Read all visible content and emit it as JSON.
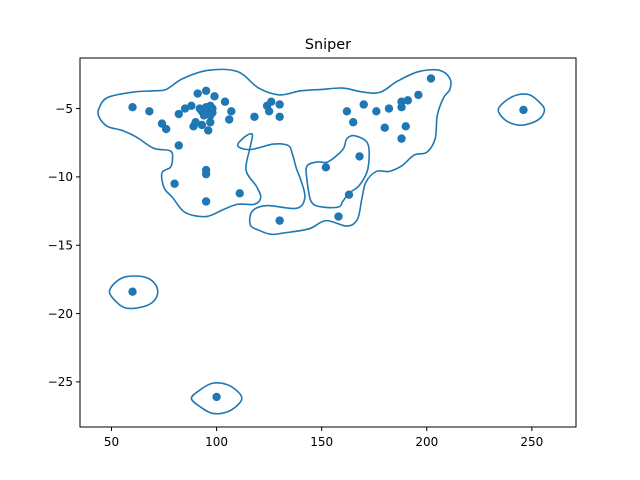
{
  "chart_data": {
    "type": "scatter",
    "title": "Sniper",
    "xlabel": "",
    "ylabel": "",
    "xlim": [
      35,
      271
    ],
    "ylim": [
      -28.3,
      -1.3
    ],
    "x_ticks": [
      50,
      100,
      150,
      200,
      250
    ],
    "x_tick_labels": [
      "50",
      "100",
      "150",
      "200",
      "250"
    ],
    "y_ticks": [
      -5,
      -10,
      -15,
      -20,
      -25
    ],
    "y_tick_labels": [
      "−5",
      "−10",
      "−15",
      "−20",
      "−25"
    ],
    "grid": false,
    "legend": "none",
    "colors": {
      "series": "#1f77b4",
      "axes": "#000000",
      "background": "#ffffff"
    },
    "points": [
      [
        60,
        -4.9
      ],
      [
        68,
        -5.2
      ],
      [
        74,
        -6.1
      ],
      [
        76,
        -6.5
      ],
      [
        80,
        -10.5
      ],
      [
        82,
        -7.7
      ],
      [
        82,
        -5.4
      ],
      [
        85,
        -5.0
      ],
      [
        88,
        -4.8
      ],
      [
        89,
        -6.3
      ],
      [
        90,
        -6.0
      ],
      [
        91,
        -3.9
      ],
      [
        92,
        -5.0
      ],
      [
        93,
        -5.2
      ],
      [
        93,
        -6.2
      ],
      [
        94,
        -5.5
      ],
      [
        95,
        -4.9
      ],
      [
        95,
        -3.7
      ],
      [
        95,
        -9.5
      ],
      [
        95,
        -9.8
      ],
      [
        95,
        -11.8
      ],
      [
        96,
        -6.6
      ],
      [
        96,
        -5.1
      ],
      [
        97,
        -4.8
      ],
      [
        97,
        -5.5
      ],
      [
        97,
        -6.0
      ],
      [
        98,
        -5.0
      ],
      [
        98,
        -5.3
      ],
      [
        99,
        -4.1
      ],
      [
        104,
        -4.5
      ],
      [
        106,
        -5.8
      ],
      [
        107,
        -5.2
      ],
      [
        111,
        -11.2
      ],
      [
        118,
        -5.6
      ],
      [
        124,
        -4.8
      ],
      [
        125,
        -5.2
      ],
      [
        126,
        -4.5
      ],
      [
        130,
        -5.6
      ],
      [
        130,
        -4.7
      ],
      [
        130,
        -13.2
      ],
      [
        152,
        -9.3
      ],
      [
        158,
        -12.9
      ],
      [
        162,
        -5.2
      ],
      [
        163,
        -11.3
      ],
      [
        165,
        -6.0
      ],
      [
        168,
        -8.5
      ],
      [
        170,
        -4.7
      ],
      [
        176,
        -5.2
      ],
      [
        180,
        -6.4
      ],
      [
        182,
        -5.0
      ],
      [
        188,
        -4.5
      ],
      [
        188,
        -4.9
      ],
      [
        188,
        -7.2
      ],
      [
        190,
        -6.3
      ],
      [
        191,
        -4.4
      ],
      [
        196,
        -4.0
      ],
      [
        202,
        -2.8
      ],
      [
        246,
        -5.1
      ],
      [
        60,
        -18.4
      ],
      [
        100,
        -26.1
      ]
    ],
    "kde_contours": [
      [
        [
          44,
          -5.0
        ],
        [
          48,
          -4.2
        ],
        [
          60,
          -3.8
        ],
        [
          70,
          -3.7
        ],
        [
          76,
          -3.6
        ],
        [
          84,
          -2.8
        ],
        [
          96,
          -2.2
        ],
        [
          110,
          -2.3
        ],
        [
          120,
          -3.5
        ],
        [
          130,
          -4.0
        ],
        [
          140,
          -3.7
        ],
        [
          150,
          -3.6
        ],
        [
          160,
          -3.5
        ],
        [
          170,
          -3.8
        ],
        [
          178,
          -3.8
        ],
        [
          186,
          -3.0
        ],
        [
          196,
          -2.3
        ],
        [
          206,
          -2.2
        ],
        [
          211,
          -2.8
        ],
        [
          211,
          -3.6
        ],
        [
          208,
          -4.2
        ],
        [
          205,
          -5.5
        ],
        [
          204,
          -7.2
        ],
        [
          200,
          -8.2
        ],
        [
          194,
          -8.4
        ],
        [
          188,
          -9.2
        ],
        [
          182,
          -9.6
        ],
        [
          176,
          -9.6
        ],
        [
          171,
          -10.4
        ],
        [
          169,
          -11.7
        ],
        [
          167,
          -13.1
        ],
        [
          162,
          -13.6
        ],
        [
          152,
          -13.2
        ],
        [
          144,
          -13.8
        ],
        [
          132,
          -14.1
        ],
        [
          126,
          -14.2
        ],
        [
          120,
          -13.9
        ],
        [
          116,
          -13.5
        ],
        [
          117,
          -12.5
        ],
        [
          124,
          -12.1
        ],
        [
          138,
          -12.3
        ],
        [
          142,
          -11.5
        ],
        [
          140,
          -10.2
        ],
        [
          138,
          -9.4
        ],
        [
          136,
          -8.3
        ],
        [
          134,
          -7.7
        ],
        [
          127,
          -7.6
        ],
        [
          116,
          -8.0
        ],
        [
          110,
          -7.7
        ],
        [
          114,
          -7.0
        ],
        [
          117,
          -6.9
        ],
        [
          116,
          -7.8
        ],
        [
          114,
          -9.5
        ],
        [
          119,
          -10.7
        ],
        [
          121,
          -11.5
        ],
        [
          118,
          -12.0
        ],
        [
          110,
          -12.0
        ],
        [
          103,
          -12.4
        ],
        [
          95,
          -12.9
        ],
        [
          85,
          -12.6
        ],
        [
          79,
          -11.5
        ],
        [
          75,
          -10.8
        ],
        [
          74,
          -9.7
        ],
        [
          78,
          -9.3
        ],
        [
          79,
          -8.7
        ],
        [
          78,
          -8.1
        ],
        [
          70,
          -7.9
        ],
        [
          62,
          -7.1
        ],
        [
          55,
          -6.6
        ],
        [
          48,
          -6.3
        ],
        [
          44,
          -5.6
        ]
      ],
      [
        [
          143,
          -9.2
        ],
        [
          148,
          -8.9
        ],
        [
          153,
          -8.9
        ],
        [
          160,
          -8.0
        ],
        [
          162,
          -7.2
        ],
        [
          166,
          -7.0
        ],
        [
          172,
          -7.6
        ],
        [
          172,
          -9.4
        ],
        [
          168,
          -10.6
        ],
        [
          163,
          -11.2
        ],
        [
          160,
          -11.8
        ],
        [
          158,
          -12.2
        ],
        [
          150,
          -12.2
        ],
        [
          145,
          -11.8
        ],
        [
          143,
          -10.2
        ]
      ],
      [
        [
          57,
          -17.3
        ],
        [
          65,
          -17.3
        ],
        [
          70,
          -17.7
        ],
        [
          72,
          -18.4
        ],
        [
          70,
          -19.1
        ],
        [
          65,
          -19.5
        ],
        [
          57,
          -19.6
        ],
        [
          52,
          -19.1
        ],
        [
          49,
          -18.4
        ],
        [
          52,
          -17.7
        ]
      ],
      [
        [
          98,
          -25.1
        ],
        [
          105,
          -25.2
        ],
        [
          110,
          -25.7
        ],
        [
          112,
          -26.2
        ],
        [
          110,
          -26.7
        ],
        [
          105,
          -27.2
        ],
        [
          98,
          -27.3
        ],
        [
          92,
          -26.8
        ],
        [
          88,
          -26.2
        ],
        [
          92,
          -25.6
        ]
      ],
      [
        [
          243,
          -4.0
        ],
        [
          249,
          -4.0
        ],
        [
          254,
          -4.6
        ],
        [
          256,
          -5.1
        ],
        [
          254,
          -5.7
        ],
        [
          249,
          -6.1
        ],
        [
          243,
          -6.2
        ],
        [
          237,
          -5.8
        ],
        [
          234,
          -5.1
        ],
        [
          237,
          -4.5
        ]
      ]
    ]
  }
}
